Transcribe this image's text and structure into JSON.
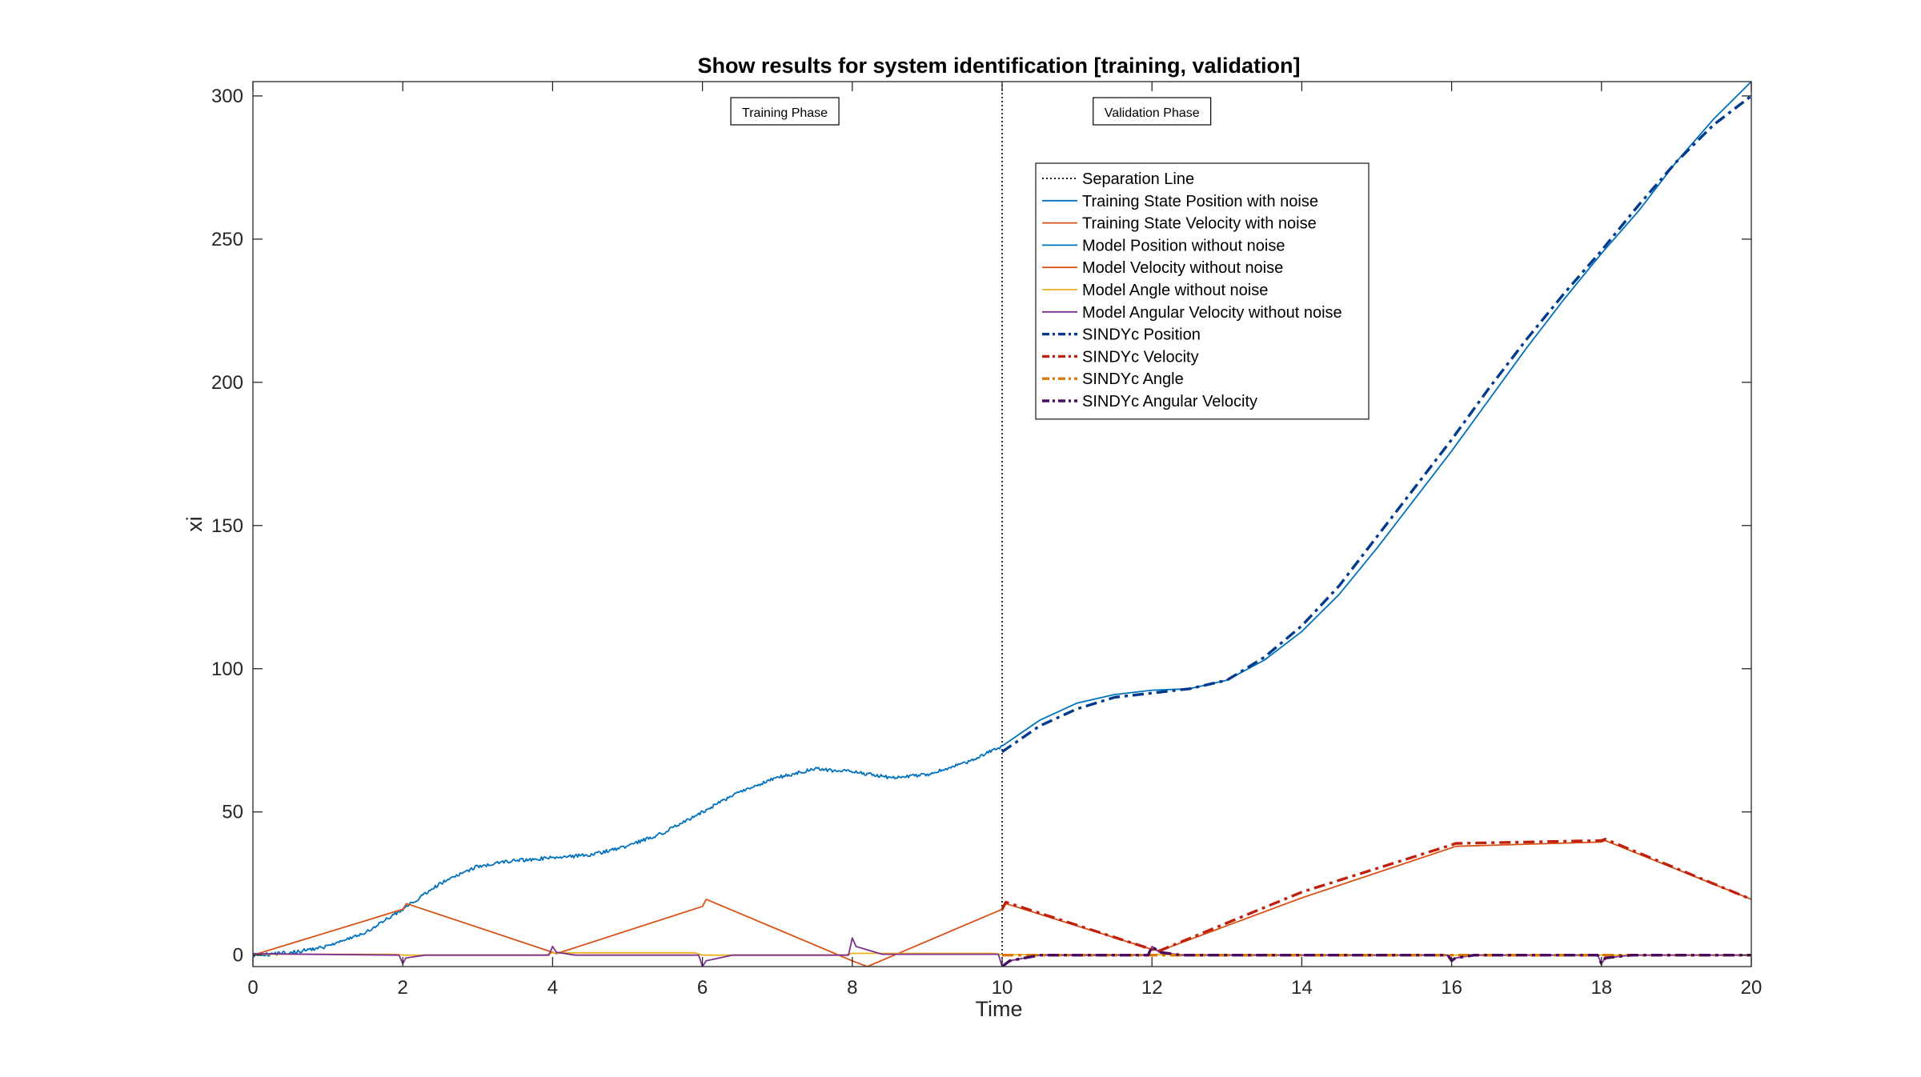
{
  "chart_data": {
    "type": "line",
    "title": "Show results for system identification [training, validation]",
    "xlabel": "Time",
    "ylabel": "xi",
    "xlim": [
      0,
      20
    ],
    "ylim": [
      -4,
      305
    ],
    "xticks": [
      0,
      2,
      4,
      6,
      8,
      10,
      12,
      14,
      16,
      18,
      20
    ],
    "yticks": [
      0,
      50,
      100,
      150,
      200,
      250,
      300
    ],
    "grid": false,
    "legend_position": "top-center",
    "annotations": [
      {
        "text": "Training Phase",
        "x": 7.1
      },
      {
        "text": "Validation Phase",
        "x": 12.0
      }
    ],
    "separation_x": 10,
    "series": [
      {
        "name": "Separation Line",
        "color": "#000000",
        "style": "dotted",
        "x": [
          10,
          10
        ],
        "y": [
          -4,
          305
        ]
      },
      {
        "name": "Training State Position with noise",
        "color": "#0072BD",
        "style": "solid",
        "noise": 0.6,
        "x": [
          0,
          0.5,
          1,
          1.5,
          2,
          2.5,
          3,
          3.5,
          4,
          4.5,
          5,
          5.5,
          6,
          6.5,
          7,
          7.5,
          8,
          8.5,
          9,
          9.5,
          10
        ],
        "y": [
          0,
          0.8,
          3,
          8,
          16,
          25,
          31,
          33,
          34,
          35,
          38,
          43,
          50,
          57,
          62,
          65,
          64,
          62,
          63,
          67,
          73
        ]
      },
      {
        "name": "Training State Velocity with noise",
        "color": "#D95319",
        "style": "solid",
        "x": [
          0,
          2,
          2.05,
          4,
          4.05,
          6,
          6.05,
          8,
          8.2,
          10
        ],
        "y": [
          0,
          16,
          18,
          1,
          0.5,
          17,
          19.5,
          -2,
          -4,
          16
        ]
      },
      {
        "name": "Model Position without noise",
        "color": "#0072BD",
        "style": "solid",
        "x": [
          10,
          10.5,
          11,
          11.5,
          12,
          12.5,
          13,
          13.5,
          14,
          14.5,
          15,
          15.5,
          16,
          16.5,
          17,
          17.5,
          18,
          18.5,
          19,
          19.5,
          20
        ],
        "y": [
          73,
          82,
          88,
          91,
          92.5,
          93,
          96,
          103,
          113,
          126,
          142,
          159,
          176,
          194,
          212,
          229,
          245,
          260,
          277,
          292,
          305
        ]
      },
      {
        "name": "Model Velocity without noise",
        "color": "#D95319",
        "style": "solid",
        "x": [
          10,
          10.05,
          12,
          12.1,
          14,
          16,
          16.05,
          18,
          18.05,
          20
        ],
        "y": [
          16,
          18,
          2,
          1.5,
          20,
          37.5,
          38,
          39.5,
          40,
          19.5
        ]
      },
      {
        "name": "Model Angle without noise",
        "color": "#EDB120",
        "style": "solid",
        "x": [
          0,
          0.1,
          1.9,
          2,
          3.9,
          4,
          5.9,
          6,
          7.9,
          8,
          9.9,
          10,
          12,
          14,
          16,
          18,
          20
        ],
        "y": [
          0.5,
          0.3,
          0.3,
          0,
          0,
          0.8,
          0.8,
          0,
          0,
          0.6,
          0.6,
          0.2,
          0.2,
          0,
          0,
          0,
          0
        ]
      },
      {
        "name": "Model Angular Velocity without noise",
        "color": "#7E2F8E",
        "style": "solid",
        "x": [
          0,
          1.95,
          2,
          2.04,
          2.3,
          3.95,
          4,
          4.05,
          4.3,
          5.95,
          6,
          6.05,
          6.4,
          7.95,
          8,
          8.05,
          8.4,
          9.95,
          10,
          10.1,
          10.5,
          11.95,
          12,
          12.1,
          12.4,
          14,
          15.95,
          16,
          16.05,
          16.3,
          17.95,
          18,
          18.05,
          18.4,
          20
        ],
        "y": [
          0.5,
          0,
          -3,
          -1,
          0,
          0,
          3,
          1,
          0,
          0,
          -4,
          -2,
          0,
          0,
          6,
          3,
          0.3,
          0.3,
          -4,
          -2,
          0,
          0,
          3,
          1,
          0,
          0,
          0,
          -2,
          -1,
          0,
          0,
          -3,
          -1,
          0,
          0
        ]
      },
      {
        "name": "SINDYc Position",
        "color": "#003A8C",
        "style": "dashdot",
        "x": [
          10,
          10.5,
          11,
          11.5,
          12,
          12.5,
          13,
          13.5,
          14,
          14.5,
          15,
          15.5,
          16,
          16.5,
          17,
          17.5,
          18,
          18.5,
          19,
          19.5,
          20
        ],
        "y": [
          71,
          80,
          86,
          90,
          91.5,
          93,
          96,
          104,
          115,
          129,
          146,
          163,
          180,
          198,
          215,
          231,
          246,
          262,
          277,
          290,
          300
        ]
      },
      {
        "name": "SINDYc Velocity",
        "color": "#C0200E",
        "style": "dashdot",
        "x": [
          10,
          10.05,
          12,
          12.1,
          14,
          16,
          16.05,
          18,
          18.05,
          20
        ],
        "y": [
          16,
          18.5,
          2,
          1.5,
          22,
          38.5,
          39,
          40,
          40.5,
          19.5
        ]
      },
      {
        "name": "SINDYc Angle",
        "color": "#D97A00",
        "style": "dashdot",
        "x": [
          10,
          12,
          14,
          16,
          18,
          20
        ],
        "y": [
          0,
          0,
          0,
          0,
          0,
          0
        ]
      },
      {
        "name": "SINDYc Angular Velocity",
        "color": "#4B0B5F",
        "style": "dashdot",
        "x": [
          10,
          10.1,
          10.5,
          11.95,
          12,
          12.1,
          12.4,
          14,
          15.95,
          16,
          16.05,
          16.3,
          17.95,
          18,
          18.05,
          18.4,
          20
        ],
        "y": [
          -4,
          -2,
          0,
          0,
          3,
          1,
          0,
          0,
          0,
          -2,
          -1,
          0,
          0,
          -3,
          -1,
          0,
          0
        ]
      }
    ]
  }
}
